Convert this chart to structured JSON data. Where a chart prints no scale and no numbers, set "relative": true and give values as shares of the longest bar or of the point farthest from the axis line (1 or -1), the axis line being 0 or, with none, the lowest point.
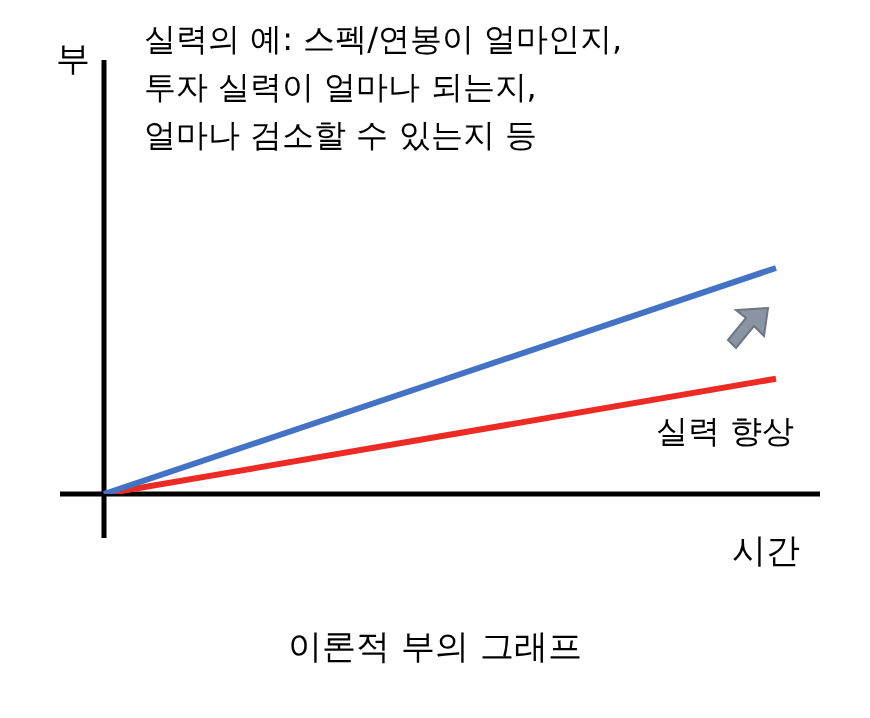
{
  "chart_data": {
    "type": "line",
    "relative": true,
    "title": "이론적 부의 그래프",
    "xlabel": "시간",
    "annotations": [
      "실력의 예: 스펙/연봉이 얼마인지,\n투자 실력이 얼마나 되는지,\n얼마나 검소할 수 있는지 등",
      "실력 향상",
      "부"
    ],
    "categories": [
      null,
      null
    ],
    "series": [
      {
        "color": "#4472c4",
        "values": [
          0,
          1
        ]
      },
      {
        "color": "#ee2a24",
        "values": [
          0,
          0.51
        ]
      }
    ],
    "legend": false,
    "marker": "none",
    "line_style": "solid"
  }
}
